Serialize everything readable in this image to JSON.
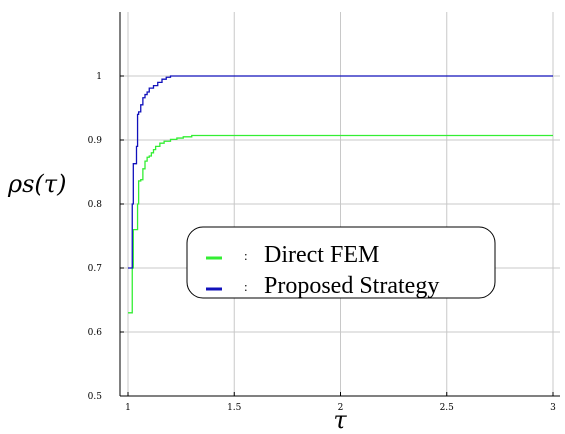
{
  "chart_data": {
    "type": "line",
    "title": "",
    "xlabel": "τ",
    "ylabel": "ρs(τ)",
    "xlim": [
      1,
      3
    ],
    "ylim": [
      0.5,
      1.1
    ],
    "xticks": [
      1,
      1.5,
      2,
      2.5,
      3
    ],
    "xtick_labels": [
      "1",
      "1.5",
      "2",
      "2.5",
      "3"
    ],
    "yticks": [
      0.5,
      0.6,
      0.7,
      0.8,
      0.9,
      1.0
    ],
    "ytick_labels": [
      "0.5",
      "0.6",
      "0.7",
      "0.8",
      "0.9",
      "1"
    ],
    "grid": true,
    "legend_position": "center",
    "legend_separator": ":",
    "series": [
      {
        "name": "Direct FEM",
        "color": "#33ee33",
        "step": true,
        "x": [
          1.0,
          1.02,
          1.025,
          1.035,
          1.045,
          1.05,
          1.06,
          1.07,
          1.08,
          1.09,
          1.1,
          1.11,
          1.12,
          1.13,
          1.15,
          1.17,
          1.2,
          1.23,
          1.26,
          1.3,
          3.0
        ],
        "y": [
          0.63,
          0.7,
          0.76,
          0.76,
          0.8,
          0.836,
          0.838,
          0.855,
          0.867,
          0.873,
          0.875,
          0.88,
          0.885,
          0.89,
          0.895,
          0.898,
          0.901,
          0.903,
          0.905,
          0.907,
          0.907
        ]
      },
      {
        "name": "Proposed Strategy",
        "color": "#1111bb",
        "step": true,
        "x": [
          1.0,
          1.02,
          1.025,
          1.035,
          1.04,
          1.045,
          1.05,
          1.06,
          1.07,
          1.08,
          1.09,
          1.1,
          1.12,
          1.14,
          1.16,
          1.18,
          1.2,
          1.22,
          3.0
        ],
        "y": [
          0.7,
          0.8,
          0.863,
          0.863,
          0.89,
          0.94,
          0.944,
          0.955,
          0.966,
          0.971,
          0.975,
          0.981,
          0.985,
          0.99,
          0.995,
          0.998,
          1.0,
          1.0,
          1.0
        ]
      }
    ]
  }
}
